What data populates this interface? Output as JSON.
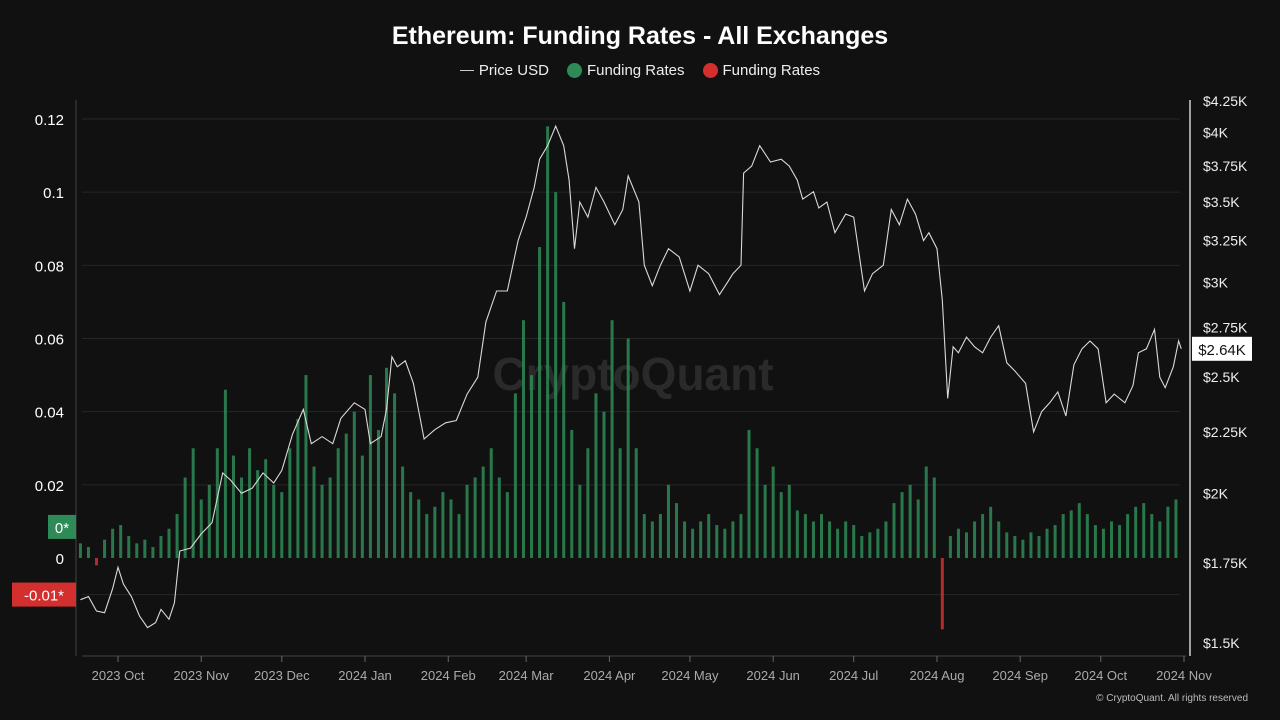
{
  "chart_data": {
    "type": "bar+line",
    "title": "Ethereum: Funding Rates - All Exchanges",
    "legend": [
      {
        "label": "Price USD",
        "color": "#cccccc",
        "kind": "line"
      },
      {
        "label": "Funding Rates",
        "color": "#2e8b57",
        "kind": "positive-bars"
      },
      {
        "label": "Funding Rates",
        "color": "#d32f2f",
        "kind": "negative-bars"
      }
    ],
    "legend_position": "top-center",
    "grid": true,
    "x_ticks": [
      "2023 Oct",
      "2023 Nov",
      "2023 Dec",
      "2024 Jan",
      "2024 Feb",
      "2024 Mar",
      "2024 Apr",
      "2024 May",
      "2024 Jun",
      "2024 Jul",
      "2024 Aug",
      "2024 Sep",
      "2024 Oct",
      "2024 Nov"
    ],
    "x_tick_dates": [
      "2023-10-01",
      "2023-11-01",
      "2023-12-01",
      "2024-01-01",
      "2024-02-01",
      "2024-03-01",
      "2024-04-01",
      "2024-05-01",
      "2024-06-01",
      "2024-07-01",
      "2024-08-01",
      "2024-09-01",
      "2024-10-01",
      "2024-11-01"
    ],
    "xlim": [
      "2023-09-17",
      "2024-11-01"
    ],
    "left_axis": {
      "ylim": [
        -0.01,
        0.12
      ],
      "ticks": [
        "0.12",
        "0.1",
        "0.08",
        "0.06",
        "0.04",
        "0.02",
        "0"
      ],
      "tick_values": [
        0.12,
        0.1,
        0.08,
        0.06,
        0.04,
        0.02,
        0
      ]
    },
    "right_axis": {
      "scale": "log",
      "ylim": [
        1500,
        4250
      ],
      "ticks": [
        "$4.25K",
        "$4K",
        "$3.75K",
        "$3.5K",
        "$3.25K",
        "$3K",
        "$2.75K",
        "$2.5K",
        "$2.25K",
        "$2K",
        "$1.75K",
        "$1.5K"
      ],
      "tick_values": [
        4250,
        4000,
        3750,
        3500,
        3250,
        3000,
        2750,
        2500,
        2250,
        2000,
        1750,
        1500
      ]
    },
    "markers": {
      "funding_positive": {
        "label": "0*",
        "value": 0.0085,
        "color": "#2e8b57"
      },
      "funding_negative": {
        "label": "-0.01*",
        "value": -0.01,
        "color": "#d32f2f"
      },
      "price_last": {
        "label": "$2.64K",
        "value": 2640
      }
    },
    "watermark": "CryptoQuant",
    "price_series": [
      [
        "2023-09-17",
        1630
      ],
      [
        "2023-09-20",
        1640
      ],
      [
        "2023-09-23",
        1595
      ],
      [
        "2023-09-26",
        1590
      ],
      [
        "2023-09-29",
        1665
      ],
      [
        "2023-10-01",
        1735
      ],
      [
        "2023-10-03",
        1680
      ],
      [
        "2023-10-06",
        1640
      ],
      [
        "2023-10-09",
        1580
      ],
      [
        "2023-10-12",
        1545
      ],
      [
        "2023-10-15",
        1560
      ],
      [
        "2023-10-17",
        1600
      ],
      [
        "2023-10-20",
        1570
      ],
      [
        "2023-10-22",
        1620
      ],
      [
        "2023-10-24",
        1790
      ],
      [
        "2023-10-28",
        1800
      ],
      [
        "2023-11-01",
        1850
      ],
      [
        "2023-11-05",
        1890
      ],
      [
        "2023-11-09",
        2080
      ],
      [
        "2023-11-12",
        2050
      ],
      [
        "2023-11-16",
        2000
      ],
      [
        "2023-11-20",
        2020
      ],
      [
        "2023-11-24",
        2080
      ],
      [
        "2023-11-28",
        2040
      ],
      [
        "2023-12-01",
        2090
      ],
      [
        "2023-12-05",
        2240
      ],
      [
        "2023-12-09",
        2350
      ],
      [
        "2023-12-12",
        2200
      ],
      [
        "2023-12-16",
        2230
      ],
      [
        "2023-12-20",
        2200
      ],
      [
        "2023-12-23",
        2310
      ],
      [
        "2023-12-28",
        2380
      ],
      [
        "2024-01-01",
        2350
      ],
      [
        "2024-01-03",
        2200
      ],
      [
        "2024-01-07",
        2230
      ],
      [
        "2024-01-09",
        2350
      ],
      [
        "2024-01-11",
        2600
      ],
      [
        "2024-01-13",
        2550
      ],
      [
        "2024-01-16",
        2580
      ],
      [
        "2024-01-19",
        2470
      ],
      [
        "2024-01-23",
        2220
      ],
      [
        "2024-01-27",
        2260
      ],
      [
        "2024-01-31",
        2290
      ],
      [
        "2024-02-04",
        2300
      ],
      [
        "2024-02-08",
        2420
      ],
      [
        "2024-02-12",
        2500
      ],
      [
        "2024-02-15",
        2780
      ],
      [
        "2024-02-19",
        2950
      ],
      [
        "2024-02-23",
        2950
      ],
      [
        "2024-02-27",
        3250
      ],
      [
        "2024-03-01",
        3400
      ],
      [
        "2024-03-04",
        3600
      ],
      [
        "2024-03-06",
        3800
      ],
      [
        "2024-03-09",
        3900
      ],
      [
        "2024-03-12",
        4050
      ],
      [
        "2024-03-15",
        3900
      ],
      [
        "2024-03-17",
        3650
      ],
      [
        "2024-03-19",
        3200
      ],
      [
        "2024-03-21",
        3500
      ],
      [
        "2024-03-24",
        3400
      ],
      [
        "2024-03-27",
        3600
      ],
      [
        "2024-03-30",
        3500
      ],
      [
        "2024-04-03",
        3350
      ],
      [
        "2024-04-06",
        3450
      ],
      [
        "2024-04-08",
        3680
      ],
      [
        "2024-04-12",
        3500
      ],
      [
        "2024-04-14",
        3100
      ],
      [
        "2024-04-17",
        2980
      ],
      [
        "2024-04-20",
        3100
      ],
      [
        "2024-04-23",
        3200
      ],
      [
        "2024-04-27",
        3150
      ],
      [
        "2024-05-01",
        2950
      ],
      [
        "2024-05-04",
        3100
      ],
      [
        "2024-05-08",
        3050
      ],
      [
        "2024-05-12",
        2930
      ],
      [
        "2024-05-15",
        3000
      ],
      [
        "2024-05-17",
        3050
      ],
      [
        "2024-05-20",
        3100
      ],
      [
        "2024-05-21",
        3700
      ],
      [
        "2024-05-24",
        3750
      ],
      [
        "2024-05-27",
        3900
      ],
      [
        "2024-05-31",
        3780
      ],
      [
        "2024-06-04",
        3800
      ],
      [
        "2024-06-07",
        3750
      ],
      [
        "2024-06-10",
        3650
      ],
      [
        "2024-06-12",
        3520
      ],
      [
        "2024-06-16",
        3570
      ],
      [
        "2024-06-18",
        3460
      ],
      [
        "2024-06-21",
        3500
      ],
      [
        "2024-06-24",
        3300
      ],
      [
        "2024-06-28",
        3420
      ],
      [
        "2024-07-01",
        3400
      ],
      [
        "2024-07-05",
        2950
      ],
      [
        "2024-07-08",
        3050
      ],
      [
        "2024-07-12",
        3100
      ],
      [
        "2024-07-15",
        3450
      ],
      [
        "2024-07-18",
        3350
      ],
      [
        "2024-07-21",
        3520
      ],
      [
        "2024-07-24",
        3420
      ],
      [
        "2024-07-27",
        3250
      ],
      [
        "2024-07-29",
        3300
      ],
      [
        "2024-08-01",
        3200
      ],
      [
        "2024-08-03",
        2900
      ],
      [
        "2024-08-05",
        2400
      ],
      [
        "2024-08-07",
        2650
      ],
      [
        "2024-08-09",
        2620
      ],
      [
        "2024-08-12",
        2700
      ],
      [
        "2024-08-15",
        2650
      ],
      [
        "2024-08-18",
        2620
      ],
      [
        "2024-08-21",
        2700
      ],
      [
        "2024-08-24",
        2760
      ],
      [
        "2024-08-27",
        2570
      ],
      [
        "2024-08-30",
        2530
      ],
      [
        "2024-09-03",
        2470
      ],
      [
        "2024-09-06",
        2250
      ],
      [
        "2024-09-09",
        2340
      ],
      [
        "2024-09-12",
        2380
      ],
      [
        "2024-09-15",
        2430
      ],
      [
        "2024-09-18",
        2320
      ],
      [
        "2024-09-21",
        2560
      ],
      [
        "2024-09-24",
        2640
      ],
      [
        "2024-09-27",
        2680
      ],
      [
        "2024-09-30",
        2640
      ],
      [
        "2024-10-03",
        2380
      ],
      [
        "2024-10-06",
        2420
      ],
      [
        "2024-10-10",
        2380
      ],
      [
        "2024-10-13",
        2460
      ],
      [
        "2024-10-15",
        2620
      ],
      [
        "2024-10-18",
        2640
      ],
      [
        "2024-10-21",
        2740
      ],
      [
        "2024-10-23",
        2500
      ],
      [
        "2024-10-25",
        2450
      ],
      [
        "2024-10-28",
        2550
      ],
      [
        "2024-10-30",
        2680
      ],
      [
        "2024-10-31",
        2640
      ]
    ],
    "funding_series": [
      [
        "2023-09-17",
        0.004
      ],
      [
        "2023-09-20",
        0.003
      ],
      [
        "2023-09-23",
        -0.002
      ],
      [
        "2023-09-26",
        0.005
      ],
      [
        "2023-09-29",
        0.008
      ],
      [
        "2023-10-02",
        0.009
      ],
      [
        "2023-10-05",
        0.006
      ],
      [
        "2023-10-08",
        0.004
      ],
      [
        "2023-10-11",
        0.005
      ],
      [
        "2023-10-14",
        0.003
      ],
      [
        "2023-10-17",
        0.006
      ],
      [
        "2023-10-20",
        0.008
      ],
      [
        "2023-10-23",
        0.012
      ],
      [
        "2023-10-26",
        0.022
      ],
      [
        "2023-10-29",
        0.03
      ],
      [
        "2023-11-01",
        0.016
      ],
      [
        "2023-11-04",
        0.02
      ],
      [
        "2023-11-07",
        0.03
      ],
      [
        "2023-11-10",
        0.046
      ],
      [
        "2023-11-13",
        0.028
      ],
      [
        "2023-11-16",
        0.022
      ],
      [
        "2023-11-19",
        0.03
      ],
      [
        "2023-11-22",
        0.024
      ],
      [
        "2023-11-25",
        0.027
      ],
      [
        "2023-11-28",
        0.02
      ],
      [
        "2023-12-01",
        0.018
      ],
      [
        "2023-12-04",
        0.03
      ],
      [
        "2023-12-07",
        0.038
      ],
      [
        "2023-12-10",
        0.05
      ],
      [
        "2023-12-13",
        0.025
      ],
      [
        "2023-12-16",
        0.02
      ],
      [
        "2023-12-19",
        0.022
      ],
      [
        "2023-12-22",
        0.03
      ],
      [
        "2023-12-25",
        0.034
      ],
      [
        "2023-12-28",
        0.04
      ],
      [
        "2023-12-31",
        0.028
      ],
      [
        "2024-01-03",
        0.05
      ],
      [
        "2024-01-06",
        0.035
      ],
      [
        "2024-01-09",
        0.052
      ],
      [
        "2024-01-12",
        0.045
      ],
      [
        "2024-01-15",
        0.025
      ],
      [
        "2024-01-18",
        0.018
      ],
      [
        "2024-01-21",
        0.016
      ],
      [
        "2024-01-24",
        0.012
      ],
      [
        "2024-01-27",
        0.014
      ],
      [
        "2024-01-30",
        0.018
      ],
      [
        "2024-02-02",
        0.016
      ],
      [
        "2024-02-05",
        0.012
      ],
      [
        "2024-02-08",
        0.02
      ],
      [
        "2024-02-11",
        0.022
      ],
      [
        "2024-02-14",
        0.025
      ],
      [
        "2024-02-17",
        0.03
      ],
      [
        "2024-02-20",
        0.022
      ],
      [
        "2024-02-23",
        0.018
      ],
      [
        "2024-02-26",
        0.045
      ],
      [
        "2024-02-29",
        0.065
      ],
      [
        "2024-03-03",
        0.05
      ],
      [
        "2024-03-06",
        0.085
      ],
      [
        "2024-03-09",
        0.118
      ],
      [
        "2024-03-12",
        0.1
      ],
      [
        "2024-03-15",
        0.07
      ],
      [
        "2024-03-18",
        0.035
      ],
      [
        "2024-03-21",
        0.02
      ],
      [
        "2024-03-24",
        0.03
      ],
      [
        "2024-03-27",
        0.045
      ],
      [
        "2024-03-30",
        0.04
      ],
      [
        "2024-04-02",
        0.065
      ],
      [
        "2024-04-05",
        0.03
      ],
      [
        "2024-04-08",
        0.06
      ],
      [
        "2024-04-11",
        0.03
      ],
      [
        "2024-04-14",
        0.012
      ],
      [
        "2024-04-17",
        0.01
      ],
      [
        "2024-04-20",
        0.012
      ],
      [
        "2024-04-23",
        0.02
      ],
      [
        "2024-04-26",
        0.015
      ],
      [
        "2024-04-29",
        0.01
      ],
      [
        "2024-05-02",
        0.008
      ],
      [
        "2024-05-05",
        0.01
      ],
      [
        "2024-05-08",
        0.012
      ],
      [
        "2024-05-11",
        0.009
      ],
      [
        "2024-05-14",
        0.008
      ],
      [
        "2024-05-17",
        0.01
      ],
      [
        "2024-05-20",
        0.012
      ],
      [
        "2024-05-23",
        0.035
      ],
      [
        "2024-05-26",
        0.03
      ],
      [
        "2024-05-29",
        0.02
      ],
      [
        "2024-06-01",
        0.025
      ],
      [
        "2024-06-04",
        0.018
      ],
      [
        "2024-06-07",
        0.02
      ],
      [
        "2024-06-10",
        0.013
      ],
      [
        "2024-06-13",
        0.012
      ],
      [
        "2024-06-16",
        0.01
      ],
      [
        "2024-06-19",
        0.012
      ],
      [
        "2024-06-22",
        0.01
      ],
      [
        "2024-06-25",
        0.008
      ],
      [
        "2024-06-28",
        0.01
      ],
      [
        "2024-07-01",
        0.009
      ],
      [
        "2024-07-04",
        0.006
      ],
      [
        "2024-07-07",
        0.007
      ],
      [
        "2024-07-10",
        0.008
      ],
      [
        "2024-07-13",
        0.01
      ],
      [
        "2024-07-16",
        0.015
      ],
      [
        "2024-07-19",
        0.018
      ],
      [
        "2024-07-22",
        0.02
      ],
      [
        "2024-07-25",
        0.016
      ],
      [
        "2024-07-28",
        0.025
      ],
      [
        "2024-07-31",
        0.022
      ],
      [
        "2024-08-03",
        -0.0195
      ],
      [
        "2024-08-06",
        0.006
      ],
      [
        "2024-08-09",
        0.008
      ],
      [
        "2024-08-12",
        0.007
      ],
      [
        "2024-08-15",
        0.01
      ],
      [
        "2024-08-18",
        0.012
      ],
      [
        "2024-08-21",
        0.014
      ],
      [
        "2024-08-24",
        0.01
      ],
      [
        "2024-08-27",
        0.007
      ],
      [
        "2024-08-30",
        0.006
      ],
      [
        "2024-09-02",
        0.005
      ],
      [
        "2024-09-05",
        0.007
      ],
      [
        "2024-09-08",
        0.006
      ],
      [
        "2024-09-11",
        0.008
      ],
      [
        "2024-09-14",
        0.009
      ],
      [
        "2024-09-17",
        0.012
      ],
      [
        "2024-09-20",
        0.013
      ],
      [
        "2024-09-23",
        0.015
      ],
      [
        "2024-09-26",
        0.012
      ],
      [
        "2024-09-29",
        0.009
      ],
      [
        "2024-10-02",
        0.008
      ],
      [
        "2024-10-05",
        0.01
      ],
      [
        "2024-10-08",
        0.009
      ],
      [
        "2024-10-11",
        0.012
      ],
      [
        "2024-10-14",
        0.014
      ],
      [
        "2024-10-17",
        0.015
      ],
      [
        "2024-10-20",
        0.012
      ],
      [
        "2024-10-23",
        0.01
      ],
      [
        "2024-10-26",
        0.014
      ],
      [
        "2024-10-29",
        0.016
      ]
    ]
  },
  "footer": "© CryptoQuant. All rights reserved",
  "colors": {
    "background": "#111111",
    "positive": "#2e8b57",
    "negative": "#d32f2f",
    "price": "#d9d9d9"
  }
}
